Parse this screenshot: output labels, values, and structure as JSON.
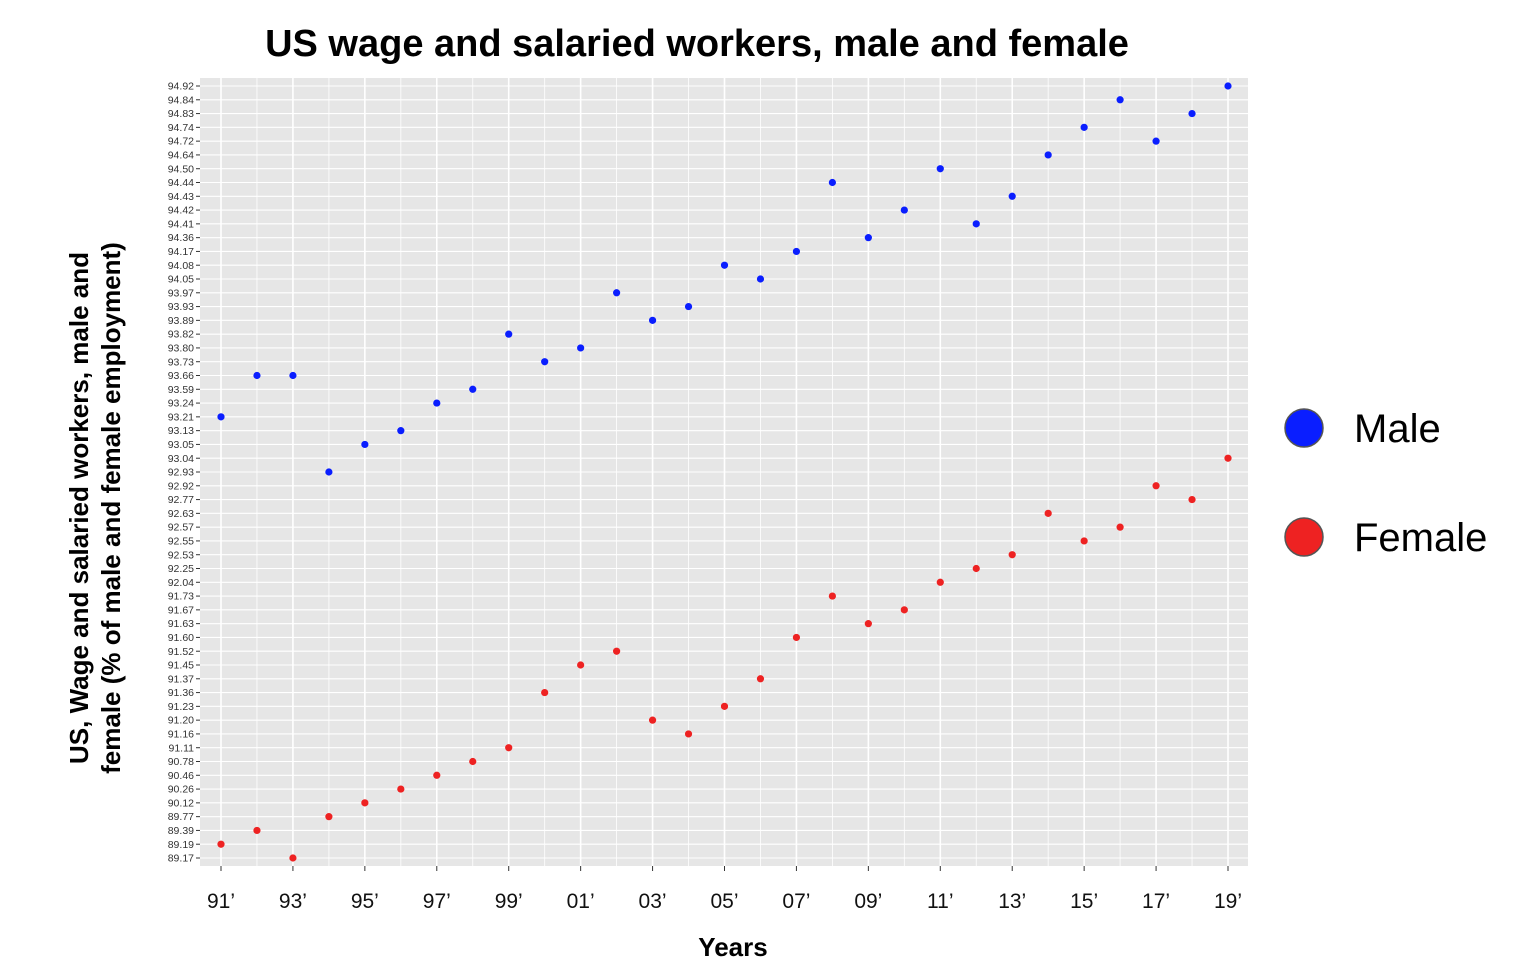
{
  "chart_data": {
    "type": "scatter",
    "title": "US wage and salaried workers, male and female",
    "xlabel": "Years",
    "ylabel_lines": [
      "US, Wage and salaried workers, male and",
      "female (% of male and female employment)"
    ],
    "x_tick_labels": [
      "91’",
      "93’",
      "95’",
      "97’",
      "99’",
      "01’",
      "03’",
      "05’",
      "07’",
      "09’",
      "11’",
      "13’",
      "15’",
      "17’",
      "19’"
    ],
    "x": [
      "1991",
      "1992",
      "1993",
      "1994",
      "1995",
      "1996",
      "1997",
      "1998",
      "1999",
      "2000",
      "2001",
      "2002",
      "2003",
      "2004",
      "2005",
      "2006",
      "2007",
      "2008",
      "2009",
      "2010",
      "2011",
      "2012",
      "2013",
      "2014",
      "2015",
      "2016",
      "2017",
      "2018",
      "2019"
    ],
    "y_axis_type": "categorical-discrete",
    "y_tick_labels": [
      "89.17",
      "89.19",
      "89.39",
      "89.77",
      "90.12",
      "90.26",
      "90.46",
      "90.78",
      "91.11",
      "91.16",
      "91.20",
      "91.23",
      "91.36",
      "91.37",
      "91.45",
      "91.52",
      "91.60",
      "91.63",
      "91.67",
      "91.73",
      "92.04",
      "92.25",
      "92.53",
      "92.55",
      "92.57",
      "92.63",
      "92.77",
      "92.92",
      "92.93",
      "93.04",
      "93.05",
      "93.13",
      "93.21",
      "93.24",
      "93.59",
      "93.66",
      "93.73",
      "93.80",
      "93.82",
      "93.89",
      "93.93",
      "93.97",
      "94.05",
      "94.08",
      "94.17",
      "94.36",
      "94.41",
      "94.42",
      "94.43",
      "94.44",
      "94.50",
      "94.64",
      "94.72",
      "94.74",
      "94.83",
      "94.84",
      "94.92"
    ],
    "grid": true,
    "legend_position": "right",
    "series": [
      {
        "name": "Male",
        "color": "#0a1eff",
        "values": [
          "93.21",
          "93.66",
          "93.66",
          "92.93",
          "93.05",
          "93.13",
          "93.24",
          "93.59",
          "93.82",
          "93.73",
          "93.80",
          "93.97",
          "93.89",
          "93.93",
          "94.08",
          "94.05",
          "94.17",
          "94.44",
          "94.36",
          "94.42",
          "94.50",
          "94.41",
          "94.43",
          "94.64",
          "94.74",
          "94.84",
          "94.72",
          "94.83",
          "94.92"
        ]
      },
      {
        "name": "Female",
        "color": "#ee2222",
        "values": [
          "89.19",
          "89.39",
          "89.17",
          "89.77",
          "90.12",
          "90.26",
          "90.46",
          "90.78",
          "91.11",
          "91.36",
          "91.45",
          "91.52",
          "91.20",
          "91.16",
          "91.23",
          "91.37",
          "91.60",
          "91.73",
          "91.63",
          "91.67",
          "92.04",
          "92.25",
          "92.53",
          "92.63",
          "92.55",
          "92.57",
          "92.92",
          "92.77",
          "93.04"
        ]
      }
    ]
  }
}
